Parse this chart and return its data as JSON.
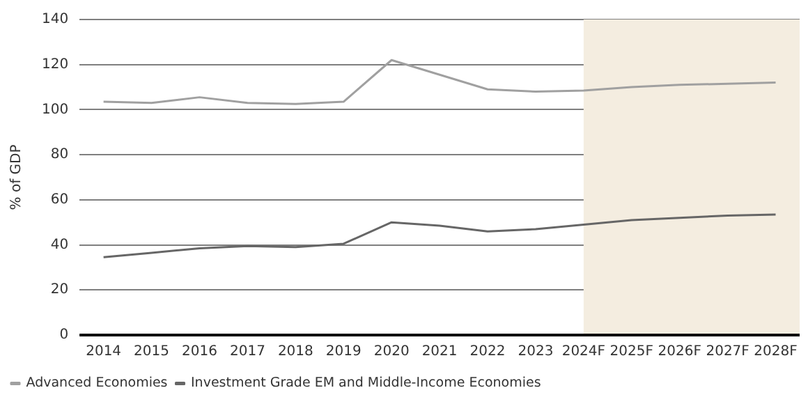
{
  "chart_data": {
    "type": "line",
    "ylabel": "% of GDP",
    "categories": [
      "2014",
      "2015",
      "2016",
      "2017",
      "2018",
      "2019",
      "2020",
      "2021",
      "2022",
      "2023",
      "2024F",
      "2025F",
      "2026F",
      "2027F",
      "2028F"
    ],
    "series": [
      {
        "name": "Advanced Economies",
        "color": "#a0a0a0",
        "values": [
          103.5,
          103,
          105.5,
          103,
          102.5,
          103.5,
          122,
          115.5,
          109,
          108,
          108.5,
          110,
          111,
          111.5,
          112
        ]
      },
      {
        "name": "Investment Grade EM and Middle-Income Economies",
        "color": "#666666",
        "values": [
          34.5,
          36.5,
          38.5,
          39.5,
          39,
          40.5,
          50,
          48.5,
          46,
          47,
          49,
          51,
          52,
          53,
          53.5
        ]
      }
    ],
    "ylim": [
      0,
      140
    ],
    "yticks": [
      0,
      20,
      40,
      60,
      80,
      100,
      120,
      140
    ],
    "grid": "y",
    "legend": "bottom left",
    "marker": "none",
    "line_style": "solid",
    "bands": [
      {
        "axis": "x",
        "from": "2024F",
        "to": "2028F",
        "color": "#f4ede0"
      }
    ]
  }
}
